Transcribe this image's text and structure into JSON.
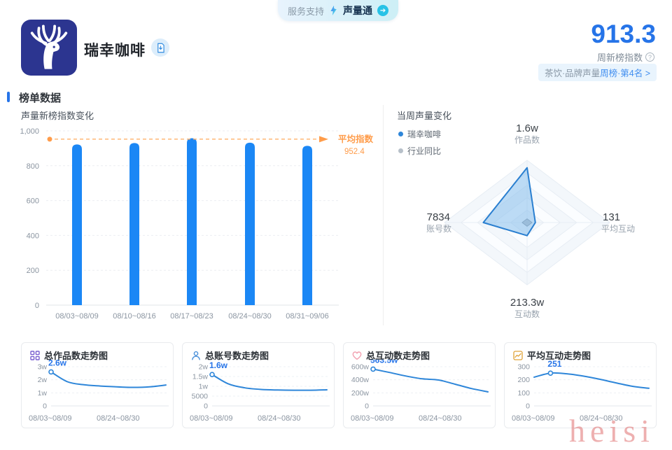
{
  "page": {
    "watermark": "heisi"
  },
  "colors": {
    "accent_blue": "#2674e8",
    "bar_blue": "#1b87f5",
    "line_blue": "#2e86d9",
    "orange": "#ff9c4a",
    "logo_navy": "#2c3590",
    "badge_bg": "#e9f4fd"
  },
  "header": {
    "service_pill": {
      "left": "服务支持",
      "brand": "声量通",
      "arrow": "➔"
    },
    "brand_name": "瑞幸咖啡",
    "score": "913.3",
    "score_label": "周新榜指数",
    "info_glyph": "?",
    "rank_badge_gray": "茶饮·品牌声量",
    "rank_badge_blue": "周榜·第4名 >"
  },
  "section_title": "榜单数据",
  "chart_data": [
    {
      "id": "weekly-index-bars",
      "type": "bar",
      "title": "声量新榜指数变化",
      "categories": [
        "08/03~08/09",
        "08/10~08/16",
        "08/17~08/23",
        "08/24~08/30",
        "08/31~09/06"
      ],
      "values": [
        922,
        930,
        958,
        932,
        914
      ],
      "ylim": [
        0,
        1000
      ],
      "yticks": [
        {
          "v": 0,
          "label": "0"
        },
        {
          "v": 200,
          "label": "200"
        },
        {
          "v": 400,
          "label": "400"
        },
        {
          "v": 600,
          "label": "600"
        },
        {
          "v": 800,
          "label": "800"
        },
        {
          "v": 1000,
          "label": "1,000"
        }
      ],
      "average": {
        "label": "平均指数",
        "value": 952.4
      },
      "grid": "dashed-horizontal"
    },
    {
      "id": "weekly-voice-radar",
      "type": "radar",
      "title": "当周声量变化",
      "legend": [
        {
          "label": "瑞幸咖啡",
          "color": "#2e86d9"
        },
        {
          "label": "行业同比",
          "color": "#b7c0c9"
        }
      ],
      "axes": [
        {
          "name": "作品数",
          "value": "1.6w",
          "pos": "top"
        },
        {
          "name": "平均互动",
          "value": "131",
          "pos": "right"
        },
        {
          "name": "互动数",
          "value": "213.3w",
          "pos": "bottom"
        },
        {
          "name": "账号数",
          "value": "7834",
          "pos": "left"
        }
      ],
      "series": [
        {
          "name": "瑞幸咖啡",
          "fractions": [
            0.88,
            0.1,
            0.21,
            0.53
          ]
        },
        {
          "name": "行业同比",
          "fractions": [
            0.06,
            0.06,
            0.06,
            0.06
          ]
        }
      ],
      "grid_levels": 5
    },
    {
      "id": "total-works-trend",
      "type": "line",
      "title": "总作品数走势图",
      "icon": "grid-icon",
      "icon_color": "#7a5fd0",
      "ymax": 3,
      "yticks": [
        "3w",
        "2w",
        "1w",
        "0"
      ],
      "values": [
        2.6,
        1.85,
        1.62,
        1.52,
        1.46,
        1.42,
        1.46,
        1.6
      ],
      "annotation": {
        "text": "2.6w",
        "index": 0
      },
      "xlabels": [
        "08/03~08/09",
        "08/24~08/30"
      ]
    },
    {
      "id": "total-accounts-trend",
      "type": "line",
      "title": "总账号数走势图",
      "icon": "user-icon",
      "icon_color": "#4a90d9",
      "ymax": 2,
      "yticks": [
        "2w",
        "1.5w",
        "1w",
        "5000",
        "0"
      ],
      "values": [
        1.6,
        1.12,
        0.92,
        0.84,
        0.81,
        0.8,
        0.8,
        0.82
      ],
      "annotation": {
        "text": "1.6w",
        "index": 0
      },
      "xlabels": [
        "08/03~08/09",
        "08/24~08/30"
      ]
    },
    {
      "id": "total-interactions-trend",
      "type": "line",
      "title": "总互动数走势图",
      "icon": "heart-icon",
      "icon_color": "#f2a0b0",
      "ymax": 600,
      "yticks": [
        "600w",
        "400w",
        "200w",
        "0"
      ],
      "values": [
        563.5,
        512,
        458,
        415,
        396,
        332,
        266,
        215
      ],
      "annotation": {
        "text": "563.5w",
        "index": 0
      },
      "xlabels": [
        "08/03~08/09",
        "08/24~08/30"
      ]
    },
    {
      "id": "avg-interaction-trend",
      "type": "line",
      "title": "平均互动走势图",
      "icon": "trend-icon",
      "icon_color": "#e0a43a",
      "ymax": 300,
      "yticks": [
        "300",
        "200",
        "100",
        "0"
      ],
      "values": [
        220,
        251,
        246,
        228,
        204,
        176,
        150,
        135
      ],
      "annotation": {
        "text": "251",
        "index": 1
      },
      "xlabels": [
        "08/03~08/09",
        "08/24~08/30"
      ]
    }
  ]
}
